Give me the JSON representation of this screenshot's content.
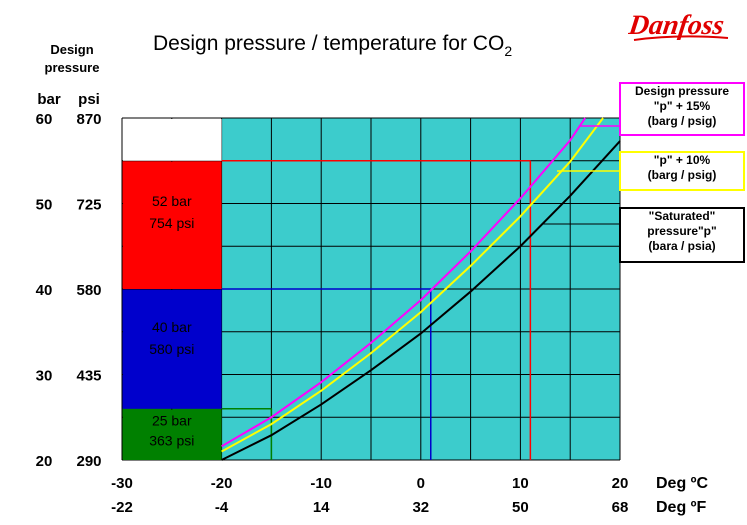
{
  "title": "Design pressure / temperature for CO",
  "title_sub": "2",
  "logo_text": "Danfoss",
  "yaxis": {
    "title_line1": "Design",
    "title_line2": "pressure",
    "unit_bar": "bar",
    "unit_psi": "psi"
  },
  "xaxis": {
    "unit_c": "Deg ºC",
    "unit_f": "Deg ºF"
  },
  "colors": {
    "teal": "#3ccccc",
    "red": "#ff0000",
    "blue": "#0000cc",
    "green": "#008000",
    "magenta": "#ff00ff",
    "yellow": "#ffff00",
    "black": "#000000"
  },
  "chart_data": {
    "type": "line",
    "title": "Design pressure / temperature for CO2",
    "xlabel": "Deg ºC / Deg ºF",
    "ylabel": "Design pressure (bar / psi)",
    "xlim": [
      -30,
      20
    ],
    "ylim": [
      20,
      60
    ],
    "x_ticks_c": [
      "-30",
      "-20",
      "-10",
      "0",
      "10",
      "20"
    ],
    "x_ticks_f": [
      "-22",
      "-4",
      "14",
      "32",
      "50",
      "68"
    ],
    "y_ticks_bar": [
      "60",
      "50",
      "40",
      "30",
      "20"
    ],
    "y_ticks_psi": [
      "870",
      "725",
      "580",
      "435",
      "290"
    ],
    "grid": true,
    "series": [
      {
        "name": "\"Saturated\" pressure \"p\" (bara / psia)",
        "color": "#000000",
        "x": [
          -20,
          -15,
          -10,
          -5,
          0,
          5,
          10,
          15,
          20
        ],
        "y": [
          20.0,
          22.9,
          26.5,
          30.5,
          34.8,
          39.7,
          45.0,
          50.9,
          57.3
        ]
      },
      {
        "name": "\"p\" + 10% (barg / psig)",
        "color": "#ffff00",
        "x": [
          -20,
          -15,
          -10,
          -5,
          0,
          5,
          10,
          15,
          18.3
        ],
        "y": [
          21.0,
          24.2,
          28.1,
          32.5,
          37.3,
          42.7,
          48.5,
          54.9,
          60.0
        ]
      },
      {
        "name": "Design pressure \"p\" + 15% (barg / psig)",
        "color": "#ff00ff",
        "x": [
          -20,
          -15,
          -10,
          -5,
          0,
          5,
          10,
          15,
          16.5
        ],
        "y": [
          21.6,
          25.0,
          29.1,
          33.7,
          38.7,
          44.4,
          50.6,
          57.4,
          60.0
        ]
      }
    ],
    "regions": [
      {
        "label_bar": "52 bar",
        "label_psi": "754 psi",
        "value_bar": 52,
        "value_psi": 754,
        "color": "#ff0000",
        "x_intersect": 11,
        "fill_to": 55
      },
      {
        "label_bar": "40 bar",
        "label_psi": "580 psi",
        "value_bar": 40,
        "value_psi": 580,
        "color": "#0000cc",
        "x_intersect": 1,
        "fill_to": 40
      },
      {
        "label_bar": "25 bar",
        "label_psi": "363 psi",
        "value_bar": 25,
        "value_psi": 363,
        "color": "#008000",
        "x_intersect": -15,
        "fill_to": 26
      }
    ]
  },
  "legend": [
    {
      "lines": [
        "Design pressure",
        "\"p\" + 15%",
        "(barg / psig)"
      ],
      "border": "#ff00ff"
    },
    {
      "lines": [
        "\"p\" + 10%",
        "(barg / psig)"
      ],
      "border": "#ffff00"
    },
    {
      "lines": [
        "\"Saturated\"",
        "pressure\"p\"",
        "(bara / psia)"
      ],
      "border": "#000000"
    }
  ]
}
